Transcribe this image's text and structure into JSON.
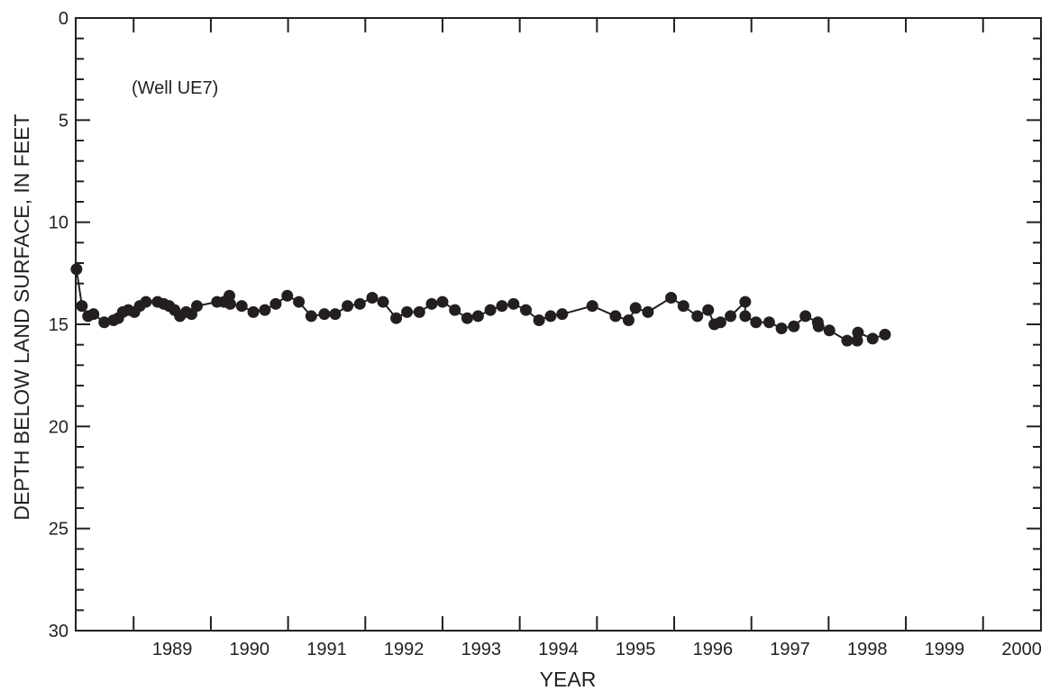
{
  "chart_data": {
    "type": "line",
    "title": "",
    "annotation": "(Well UE7)",
    "xlabel": "YEAR",
    "ylabel": "DEPTH BELOW LAND SURFACE, IN FEET",
    "xlim": [
      1988.25,
      2000.75
    ],
    "ylim": [
      0,
      30
    ],
    "y_inverted": true,
    "grid": false,
    "marker": "filled-circle",
    "color": "#231f20",
    "x_ticks": [
      "1989",
      "1990",
      "1991",
      "1992",
      "1993",
      "1994",
      "1995",
      "1996",
      "1997",
      "1998",
      "1999",
      "2000"
    ],
    "y_ticks": [
      "0",
      "5",
      "10",
      "15",
      "20",
      "25",
      "30"
    ],
    "series": [
      {
        "points": [
          [
            1988.26,
            12.3
          ],
          [
            1988.33,
            14.1
          ],
          [
            1988.41,
            14.6
          ],
          [
            1988.48,
            14.5
          ],
          [
            1988.62,
            14.9
          ],
          [
            1988.74,
            14.8
          ],
          [
            1988.8,
            14.7
          ],
          [
            1988.86,
            14.4
          ],
          [
            1988.93,
            14.3
          ],
          [
            1989.01,
            14.4
          ],
          [
            1989.08,
            14.1
          ],
          [
            1989.16,
            13.9
          ],
          [
            1989.31,
            13.9
          ],
          [
            1989.39,
            14.0
          ],
          [
            1989.46,
            14.1
          ],
          [
            1989.53,
            14.3
          ],
          [
            1989.6,
            14.6
          ],
          [
            1989.68,
            14.4
          ],
          [
            1989.75,
            14.5
          ],
          [
            1989.82,
            14.1
          ],
          [
            1990.08,
            13.9
          ],
          [
            1990.17,
            13.9
          ],
          [
            1990.24,
            13.6
          ],
          [
            1990.25,
            14.0
          ],
          [
            1990.4,
            14.1
          ],
          [
            1990.55,
            14.4
          ],
          [
            1990.7,
            14.3
          ],
          [
            1990.84,
            14.0
          ],
          [
            1990.99,
            13.6
          ],
          [
            1991.14,
            13.9
          ],
          [
            1991.3,
            14.6
          ],
          [
            1991.47,
            14.5
          ],
          [
            1991.61,
            14.5
          ],
          [
            1991.77,
            14.1
          ],
          [
            1991.93,
            14.0
          ],
          [
            1992.09,
            13.7
          ],
          [
            1992.23,
            13.9
          ],
          [
            1992.4,
            14.7
          ],
          [
            1992.54,
            14.4
          ],
          [
            1992.7,
            14.4
          ],
          [
            1992.86,
            14.0
          ],
          [
            1993.0,
            13.9
          ],
          [
            1993.16,
            14.3
          ],
          [
            1993.32,
            14.7
          ],
          [
            1993.46,
            14.6
          ],
          [
            1993.62,
            14.3
          ],
          [
            1993.77,
            14.1
          ],
          [
            1993.92,
            14.0
          ],
          [
            1994.08,
            14.3
          ],
          [
            1994.25,
            14.8
          ],
          [
            1994.4,
            14.6
          ],
          [
            1994.55,
            14.5
          ],
          [
            1994.94,
            14.1
          ],
          [
            1995.24,
            14.6
          ],
          [
            1995.41,
            14.8
          ],
          [
            1995.5,
            14.2
          ],
          [
            1995.66,
            14.4
          ],
          [
            1995.96,
            13.7
          ],
          [
            1996.12,
            14.1
          ],
          [
            1996.3,
            14.6
          ],
          [
            1996.44,
            14.3
          ],
          [
            1996.52,
            15.0
          ],
          [
            1996.6,
            14.9
          ],
          [
            1996.73,
            14.6
          ],
          [
            1996.92,
            13.9
          ],
          [
            1996.92,
            14.6
          ],
          [
            1997.06,
            14.9
          ],
          [
            1997.23,
            14.9
          ],
          [
            1997.39,
            15.2
          ],
          [
            1997.55,
            15.1
          ],
          [
            1997.7,
            14.6
          ],
          [
            1997.86,
            14.9
          ],
          [
            1997.87,
            15.1
          ],
          [
            1998.01,
            15.3
          ],
          [
            1998.24,
            15.8
          ],
          [
            1998.37,
            15.8
          ],
          [
            1998.38,
            15.4
          ],
          [
            1998.57,
            15.7
          ],
          [
            1998.73,
            15.5
          ]
        ]
      }
    ]
  }
}
